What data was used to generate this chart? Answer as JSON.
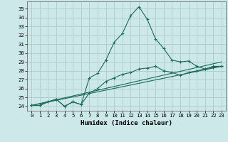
{
  "xlabel": "Humidex (Indice chaleur)",
  "bg_color": "#cce8e8",
  "grid_color": "#b0d0d0",
  "line_color": "#1a6b5a",
  "xlim": [
    -0.5,
    23.5
  ],
  "ylim": [
    23.5,
    35.8
  ],
  "xticks": [
    0,
    1,
    2,
    3,
    4,
    5,
    6,
    7,
    8,
    9,
    10,
    11,
    12,
    13,
    14,
    15,
    16,
    17,
    18,
    19,
    20,
    21,
    22,
    23
  ],
  "yticks": [
    24,
    25,
    26,
    27,
    28,
    29,
    30,
    31,
    32,
    33,
    34,
    35
  ],
  "series1_x": [
    0,
    1,
    2,
    3,
    4,
    5,
    6,
    7,
    8,
    9,
    10,
    11,
    12,
    13,
    14,
    15,
    16,
    17,
    18,
    19,
    20,
    21,
    22,
    23
  ],
  "series1_y": [
    24.1,
    24.1,
    24.5,
    24.8,
    24.0,
    24.5,
    24.2,
    27.2,
    27.7,
    29.2,
    31.2,
    32.2,
    34.2,
    35.2,
    33.8,
    31.6,
    30.5,
    29.2,
    29.0,
    29.1,
    28.5,
    28.2,
    28.5,
    28.5
  ],
  "series2_x": [
    0,
    1,
    2,
    3,
    4,
    5,
    6,
    7,
    8,
    9,
    10,
    11,
    12,
    13,
    14,
    15,
    16,
    17,
    18,
    19,
    20,
    21,
    22,
    23
  ],
  "series2_y": [
    24.1,
    24.1,
    24.5,
    24.8,
    24.0,
    24.5,
    24.2,
    25.5,
    26.0,
    26.8,
    27.2,
    27.6,
    27.8,
    28.2,
    28.3,
    28.5,
    28.0,
    27.8,
    27.5,
    27.8,
    28.0,
    28.2,
    28.4,
    28.5
  ],
  "line3_x0": 0,
  "line3_x1": 23,
  "line3_y0": 24.1,
  "line3_y1": 29.0,
  "line4_x0": 0,
  "line4_x1": 23,
  "line4_y0": 24.1,
  "line4_y1": 28.5
}
